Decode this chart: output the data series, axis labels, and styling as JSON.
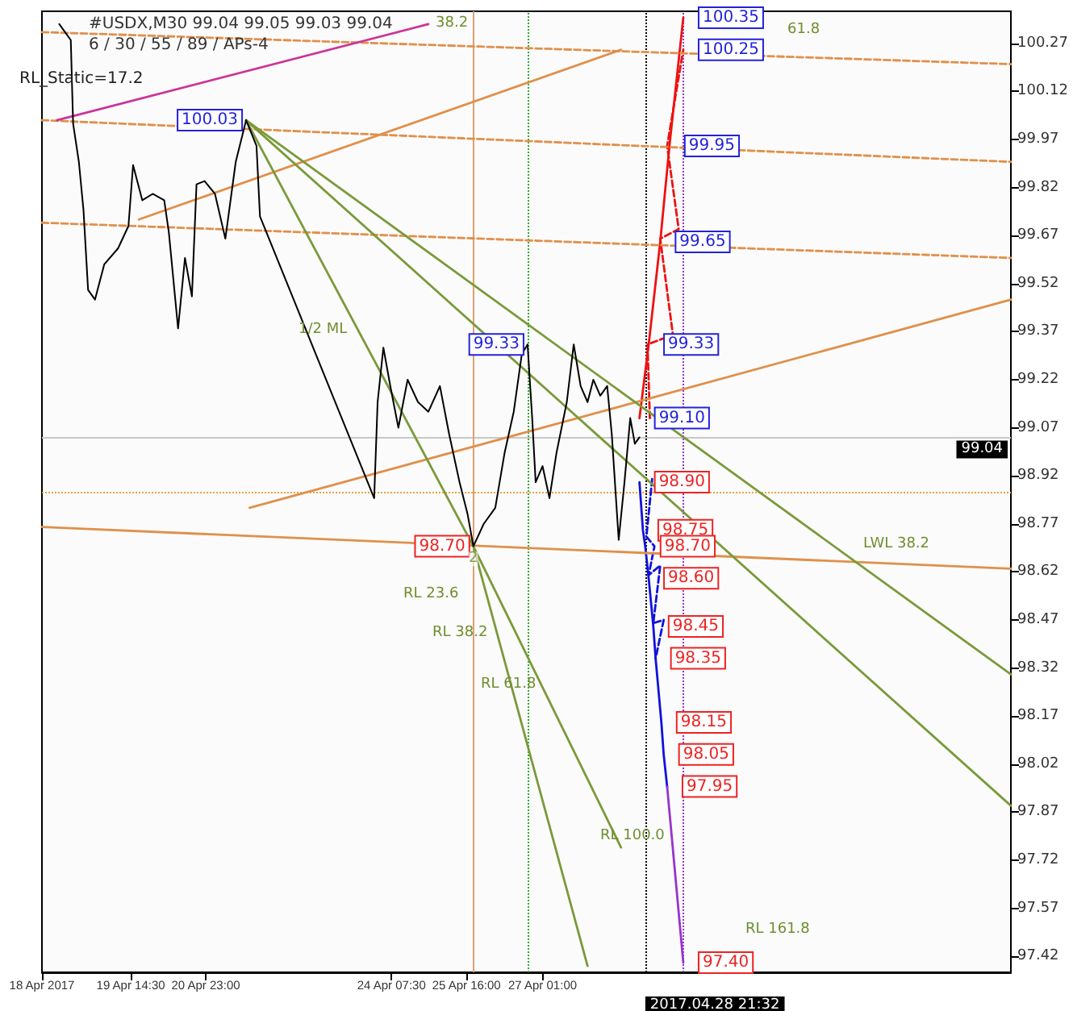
{
  "chart_data": {
    "type": "line",
    "title": "#USDX,M30 99.04 99.05 99.03 99.04",
    "subtitle": "6 / 30 / 55 / 89 / APs-4",
    "xlim": [
      "2017-04-18T00:00",
      "2017-05-05T12:00"
    ],
    "xticks": [
      {
        "value": "2017-04-18",
        "label": "18 Apr 2017"
      },
      {
        "value": "2017-04-19T14:30",
        "label": "19 Apr 14:30"
      },
      {
        "value": "2017-04-20T23:00",
        "label": "20 Apr 23:00"
      },
      {
        "value": "2017-04-24T07:30",
        "label": "24 Apr 07:30"
      },
      {
        "value": "2017-04-25T16:00",
        "label": "25 Apr 16:00"
      },
      {
        "value": "2017-04-27T01:00",
        "label": "27 Apr 01:00"
      }
    ],
    "ylim": [
      97.37,
      100.37
    ],
    "yticks": [
      97.42,
      97.57,
      97.72,
      97.87,
      98.02,
      98.17,
      98.32,
      98.47,
      98.62,
      98.77,
      98.92,
      99.07,
      99.22,
      99.37,
      99.52,
      99.67,
      99.82,
      99.97,
      100.12,
      100.27
    ],
    "grid": false,
    "marker": "none",
    "series": [
      {
        "color": "#000000",
        "x": [
          "2017-04-18T07:30",
          "2017-04-18T12:30",
          "2017-04-18T13:30",
          "2017-04-18T16:00",
          "2017-04-18T18:00",
          "2017-04-18T20:00",
          "2017-04-18T23:00",
          "2017-04-19T03:00",
          "2017-04-19T09:00",
          "2017-04-19T13:30",
          "2017-04-19T15:30",
          "2017-04-19T19:30",
          "2017-04-20T00:00",
          "2017-04-20T05:00",
          "2017-04-20T07:00",
          "2017-04-20T11:00",
          "2017-04-20T14:00",
          "2017-04-20T17:00",
          "2017-04-20T19:00",
          "2017-04-20T22:30",
          "2017-04-21T03:00",
          "2017-04-21T07:30",
          "2017-04-21T12:00",
          "2017-04-21T16:30",
          "2017-04-21T21:00",
          "2017-04-21T22:30",
          "2017-04-24T00:00",
          "2017-04-24T01:30",
          "2017-04-24T04:00",
          "2017-04-24T07:00",
          "2017-04-24T10:30",
          "2017-04-24T14:30",
          "2017-04-24T19:00",
          "2017-04-24T23:30",
          "2017-04-25T04:30",
          "2017-04-25T08:30",
          "2017-04-25T13:00",
          "2017-04-25T16:30",
          "2017-04-25T19:00",
          "2017-04-25T23:30",
          "2017-04-26T04:30",
          "2017-04-26T08:30",
          "2017-04-26T12:30",
          "2017-04-26T16:00",
          "2017-04-26T18:30",
          "2017-04-26T20:30",
          "2017-04-26T22:00",
          "2017-04-27T01:00",
          "2017-04-27T04:00",
          "2017-04-27T07:00",
          "2017-04-27T11:30",
          "2017-04-27T14:30",
          "2017-04-27T17:30",
          "2017-04-27T20:30",
          "2017-04-27T23:00",
          "2017-04-28T02:00",
          "2017-04-28T05:00",
          "2017-04-28T07:00",
          "2017-04-28T10:00",
          "2017-04-28T12:30",
          "2017-04-28T15:00",
          "2017-04-28T17:00",
          "2017-04-28T19:00"
        ],
        "values": [
          100.33,
          100.28,
          100.02,
          99.9,
          99.75,
          99.5,
          99.47,
          99.58,
          99.63,
          99.7,
          99.89,
          99.78,
          99.8,
          99.78,
          99.68,
          99.38,
          99.6,
          99.48,
          99.83,
          99.84,
          99.8,
          99.66,
          99.9,
          100.03,
          99.95,
          99.73,
          98.85,
          99.15,
          99.32,
          99.2,
          99.07,
          99.22,
          99.15,
          99.12,
          99.2,
          99.05,
          98.9,
          98.8,
          98.7,
          98.77,
          98.82,
          98.99,
          99.12,
          99.3,
          99.33,
          99.1,
          98.9,
          98.95,
          98.85,
          98.99,
          99.15,
          99.33,
          99.2,
          99.15,
          99.22,
          99.17,
          99.2,
          99.05,
          98.72,
          98.9,
          99.1,
          99.02,
          99.04
        ],
        "value_labels": [
          null,
          null,
          null,
          null,
          null,
          null,
          null,
          null,
          null,
          null,
          null,
          null,
          null,
          null,
          null,
          null,
          null,
          null,
          null,
          null,
          null,
          null,
          null,
          "100.03",
          null,
          null,
          null,
          null,
          null,
          null,
          null,
          null,
          null,
          null,
          null,
          null,
          null,
          null,
          "98.70",
          null,
          null,
          null,
          null,
          null,
          "99.33",
          null,
          null,
          null,
          null,
          null,
          null,
          null,
          null,
          null,
          null,
          null,
          null,
          null,
          null,
          null,
          null,
          null,
          null
        ]
      },
      {
        "color": "#ee1111",
        "x": [
          "2017-04-28T19:00",
          "2017-04-28T23:00",
          "2017-04-29T04:00",
          "2017-04-29T08:00",
          "2017-04-29T14:00"
        ],
        "values": [
          99.1,
          99.33,
          99.65,
          99.95,
          100.35
        ],
        "value_labels": [
          "99.10",
          "99.33",
          "99.65",
          "99.95",
          "100.35"
        ]
      },
      {
        "color": "#ee1111",
        "line_style": "dashed",
        "x": [
          "2017-04-28T23:30",
          "2017-04-28T22:30",
          "2017-04-29T09:30",
          "2017-04-29T04:00",
          "2017-04-29T12:00",
          "2017-04-29T07:00",
          "2017-04-29T14:00"
        ],
        "values": [
          99.1,
          99.33,
          99.36,
          99.66,
          99.69,
          99.95,
          100.25
        ],
        "value_labels": [
          null,
          null,
          null,
          null,
          null,
          null,
          "100.25"
        ]
      },
      {
        "color": "#1111dd",
        "x": [
          "2017-04-28T19:00",
          "2017-04-28T20:30",
          "2017-04-28T21:30",
          "2017-04-28T23:00",
          "2017-04-29T01:00",
          "2017-04-29T02:00",
          "2017-04-29T04:30",
          "2017-04-29T05:30",
          "2017-04-29T07:00"
        ],
        "values": [
          98.9,
          98.75,
          98.7,
          98.6,
          98.45,
          98.35,
          98.15,
          98.05,
          97.95
        ],
        "value_labels": [
          "98.90",
          "98.75",
          "98.70",
          "98.60",
          "98.45",
          "98.35",
          "98.15",
          "98.05",
          "97.95"
        ]
      },
      {
        "color": "#1111dd",
        "line_style": "dashed",
        "x": [
          "2017-04-29T00:30",
          "2017-04-28T22:00",
          "2017-04-29T01:30",
          "2017-04-28T23:00",
          "2017-04-29T04:00",
          "2017-04-29T01:00",
          "2017-04-29T05:30",
          "2017-04-29T02:00"
        ],
        "values": [
          98.91,
          98.73,
          98.7,
          98.61,
          98.64,
          98.46,
          98.47,
          98.35
        ]
      },
      {
        "color": "#9933cc",
        "x": [
          "2017-04-29T07:00",
          "2017-04-29T14:00"
        ],
        "values": [
          97.95,
          97.4
        ],
        "value_labels": [
          null,
          "97.40"
        ]
      },
      {
        "color": "#e0904a",
        "line_style": "dashed",
        "x": [
          "2017-04-18T00:00",
          "2017-05-05T12:00"
        ],
        "values": [
          100.305,
          100.205
        ]
      },
      {
        "color": "#e0904a",
        "line_style": "dashed",
        "x": [
          "2017-04-18T00:00",
          "2017-05-05T12:00"
        ],
        "values": [
          100.03,
          99.9
        ]
      },
      {
        "color": "#e0904a",
        "line_style": "dashed",
        "x": [
          "2017-04-18T00:00",
          "2017-05-05T12:00"
        ],
        "values": [
          99.71,
          99.6
        ]
      },
      {
        "color": "#e0904a",
        "x": [
          "2017-04-21T18:00",
          "2017-05-05T12:00"
        ],
        "values": [
          98.82,
          99.47
        ]
      },
      {
        "color": "#e0904a",
        "x": [
          "2017-04-19T18:00",
          "2017-04-28T11:00"
        ],
        "values": [
          99.72,
          100.25
        ]
      },
      {
        "color": "#e0904a",
        "x": [
          "2017-04-18T00:00",
          "2017-05-05T12:00"
        ],
        "values": [
          98.76,
          98.63
        ]
      },
      {
        "color": "#cc3399",
        "x": [
          "2017-04-18T06:30",
          "2017-04-24T23:30"
        ],
        "values": [
          100.03,
          100.33
        ]
      },
      {
        "color": "#7a9a3a",
        "x": [
          "2017-04-21T16:30",
          "2017-04-25T19:00",
          "2017-04-27T20:30"
        ],
        "values": [
          100.03,
          98.7,
          97.39
        ]
      },
      {
        "color": "#7a9a3a",
        "x": [
          "2017-04-21T16:30",
          "2017-05-05T12:00"
        ],
        "values": [
          100.03,
          97.89
        ]
      },
      {
        "color": "#7a9a3a",
        "x": [
          "2017-04-21T16:30",
          "2017-05-05T12:00"
        ],
        "values": [
          100.03,
          98.3
        ]
      },
      {
        "color": "#7a9a3a",
        "x": [
          "2017-04-25T19:00",
          "2017-04-28T11:00"
        ],
        "values": [
          98.7,
          97.76
        ]
      }
    ],
    "ref_lines": [
      {
        "axis": "y",
        "value": 99.04,
        "label": "99.04",
        "color": "#c8c8c8"
      },
      {
        "axis": "y",
        "value": 98.87,
        "color": "#f0a040",
        "line_style": "dotted"
      },
      {
        "axis": "x",
        "value": "2017-04-25T19:00",
        "color": "#e0a070"
      },
      {
        "axis": "x",
        "value": "2017-04-26T18:30",
        "color": "#33aa33",
        "line_style": "dotted"
      },
      {
        "axis": "x",
        "value": "2017-04-28T21:32",
        "label": "2017.04.28 21:32",
        "color": "#000000",
        "line_style": "dotted"
      },
      {
        "axis": "x",
        "value": "2017-04-29T14:00",
        "color": "#9933cc",
        "line_style": "dotted"
      }
    ],
    "annotations": [
      "RL_Static=17.2",
      "1/2 ML",
      "LWL 38.2",
      "RL 23.6",
      "RL 38.2",
      "RL 61.8",
      "RL 161.8",
      "38.2",
      "61.8",
      "RL 100.0",
      {
        "text": "2",
        "x": "2017-04-25T19:00",
        "y": 98.66
      }
    ]
  }
}
